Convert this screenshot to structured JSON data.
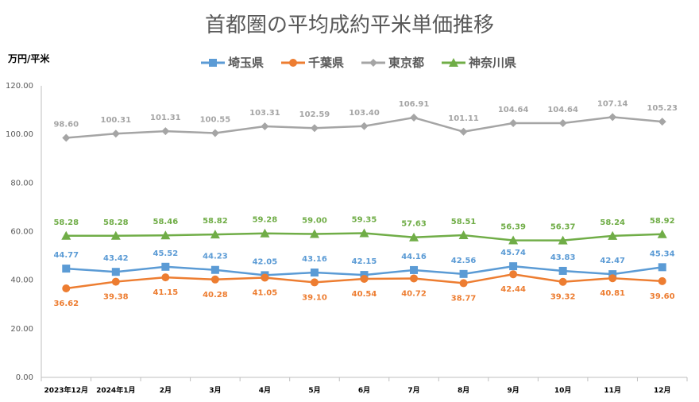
{
  "chart_data": {
    "type": "line",
    "title": "首都圏の平均成約平米単価推移",
    "ylabel": "万円/平米",
    "xlabel": "",
    "ylim": [
      0,
      120
    ],
    "yticks": [
      "0.00",
      "20.00",
      "40.00",
      "60.00",
      "80.00",
      "100.00",
      "120.00"
    ],
    "grid": false,
    "legend_position": "top-center",
    "categories": [
      "2023年12月",
      "2024年1月",
      "2月",
      "3月",
      "4月",
      "5月",
      "6月",
      "7月",
      "8月",
      "9月",
      "10月",
      "11月",
      "12月"
    ],
    "series": [
      {
        "name": "埼玉県",
        "color": "#5B9BD5",
        "marker": "square",
        "label_position": "above",
        "values": [
          44.77,
          43.42,
          45.52,
          44.23,
          42.05,
          43.16,
          42.15,
          44.16,
          42.56,
          45.74,
          43.83,
          42.47,
          45.34
        ]
      },
      {
        "name": "千葉県",
        "color": "#ED7D31",
        "marker": "circle",
        "label_position": "below",
        "values": [
          36.62,
          39.38,
          41.15,
          40.28,
          41.05,
          39.1,
          40.54,
          40.72,
          38.77,
          42.44,
          39.32,
          40.81,
          39.6
        ]
      },
      {
        "name": "東京都",
        "color": "#A5A5A5",
        "marker": "diamond",
        "label_position": "above",
        "values": [
          98.6,
          100.31,
          101.31,
          100.55,
          103.31,
          102.59,
          103.4,
          106.91,
          101.11,
          104.64,
          104.64,
          107.14,
          105.23
        ]
      },
      {
        "name": "神奈川県",
        "color": "#70AD47",
        "marker": "triangle",
        "label_position": "above",
        "values": [
          58.28,
          58.28,
          58.46,
          58.82,
          59.28,
          59.0,
          59.35,
          57.63,
          58.51,
          56.39,
          56.37,
          58.24,
          58.92
        ]
      }
    ]
  }
}
